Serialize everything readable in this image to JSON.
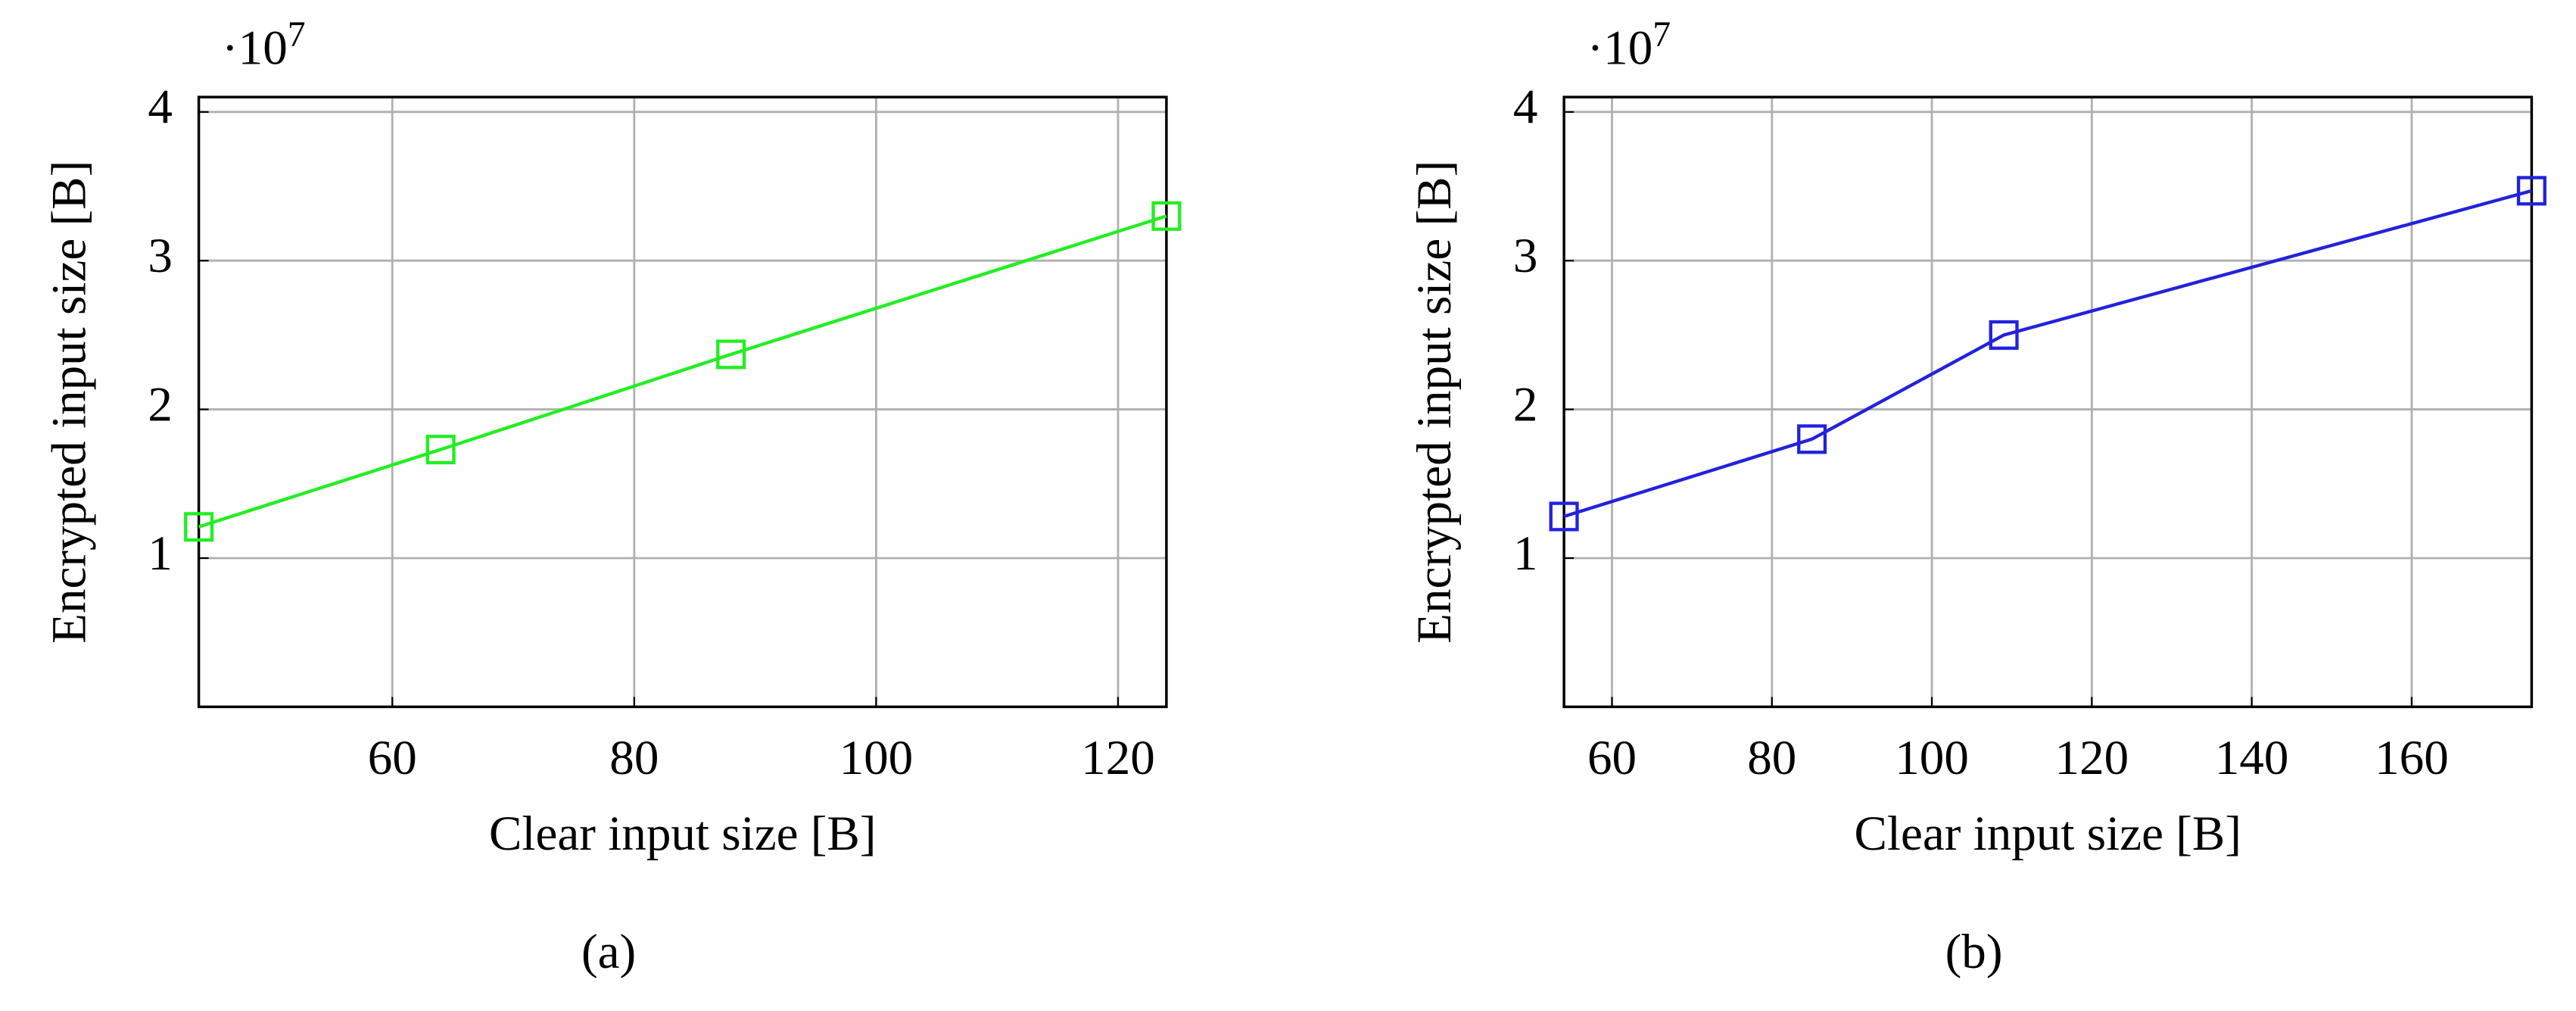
{
  "chart_data": [
    {
      "type": "line",
      "caption": "(a)",
      "multiplier": {
        "base": "·10",
        "exponent": "7"
      },
      "x_label": "Clear input size [B]",
      "y_label": "Encrypted input size [B]",
      "x": [
        44,
        64,
        88,
        124
      ],
      "series": [
        {
          "color": "#22ee22",
          "values": [
            12100000,
            17300000,
            23700000,
            33000000
          ]
        }
      ],
      "xlim": [
        44,
        124
      ],
      "xticks": [
        60,
        80,
        100,
        120
      ],
      "ylim": [
        0,
        41000000
      ],
      "yticks": [
        {
          "value": 10000000,
          "label": "1"
        },
        {
          "value": 20000000,
          "label": "2"
        },
        {
          "value": 30000000,
          "label": "3"
        },
        {
          "value": 40000000,
          "label": "4"
        }
      ],
      "grid": true
    },
    {
      "type": "line",
      "caption": "(b)",
      "multiplier": {
        "base": "·10",
        "exponent": "7"
      },
      "x_label": "Clear input size [B]",
      "y_label": "Encrypted input size [B]",
      "x": [
        54,
        85,
        109,
        175
      ],
      "series": [
        {
          "color": "#2222dd",
          "values": [
            12800000,
            18000000,
            25000000,
            34700000
          ]
        }
      ],
      "xlim": [
        54,
        175
      ],
      "xticks": [
        60,
        80,
        100,
        120,
        140,
        160
      ],
      "ylim": [
        0,
        41000000
      ],
      "yticks": [
        {
          "value": 10000000,
          "label": "1"
        },
        {
          "value": 20000000,
          "label": "2"
        },
        {
          "value": 30000000,
          "label": "3"
        },
        {
          "value": 40000000,
          "label": "4"
        }
      ],
      "grid": true
    }
  ]
}
